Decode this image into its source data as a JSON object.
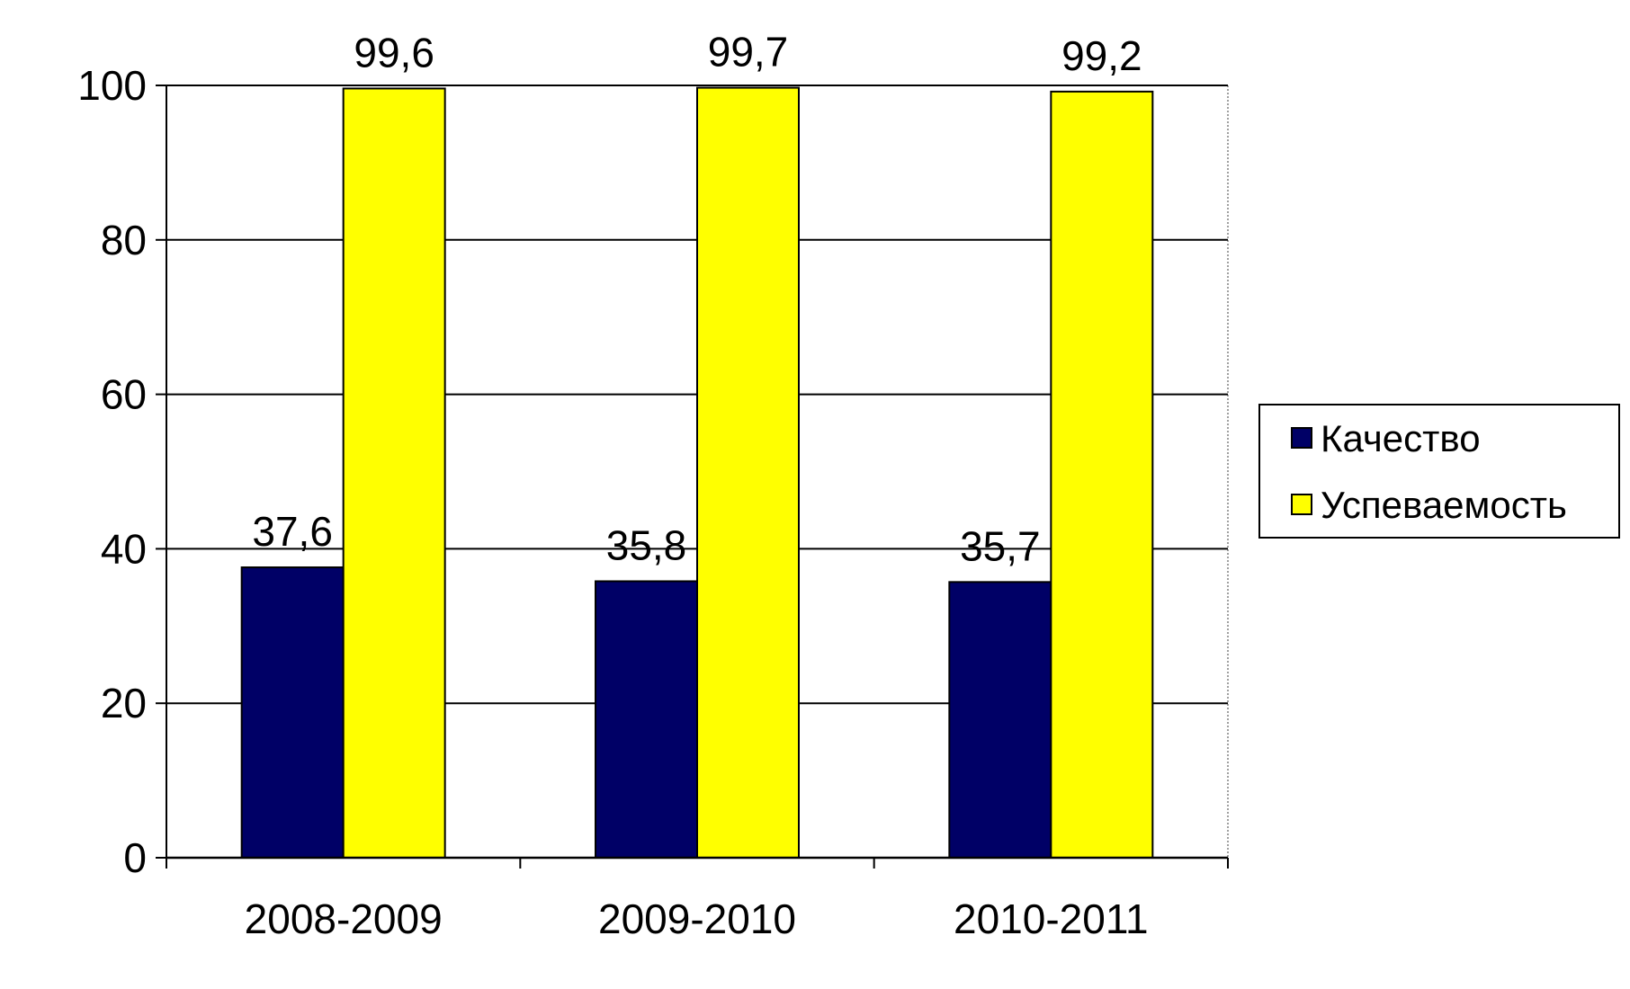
{
  "chart_data": {
    "type": "bar",
    "title": "",
    "xlabel": "",
    "ylabel": "",
    "categories": [
      "2008-2009",
      "2009-2010",
      "2010-2011"
    ],
    "series": [
      {
        "name": "Качество",
        "color": "#000066",
        "values": [
          37.6,
          35.8,
          35.7
        ],
        "labels": [
          "37,6",
          "35,8",
          "35,7"
        ]
      },
      {
        "name": "Успеваемость",
        "color": "#ffff00",
        "values": [
          99.6,
          99.7,
          99.2
        ],
        "labels": [
          "99,6",
          "99,7",
          "99,2"
        ]
      }
    ],
    "ylim": [
      0,
      100
    ],
    "yticks": [
      0,
      20,
      40,
      60,
      80,
      100
    ],
    "ytick_labels": [
      "0",
      "20",
      "40",
      "60",
      "80",
      "100"
    ],
    "grid": true,
    "legend_position": "right"
  }
}
